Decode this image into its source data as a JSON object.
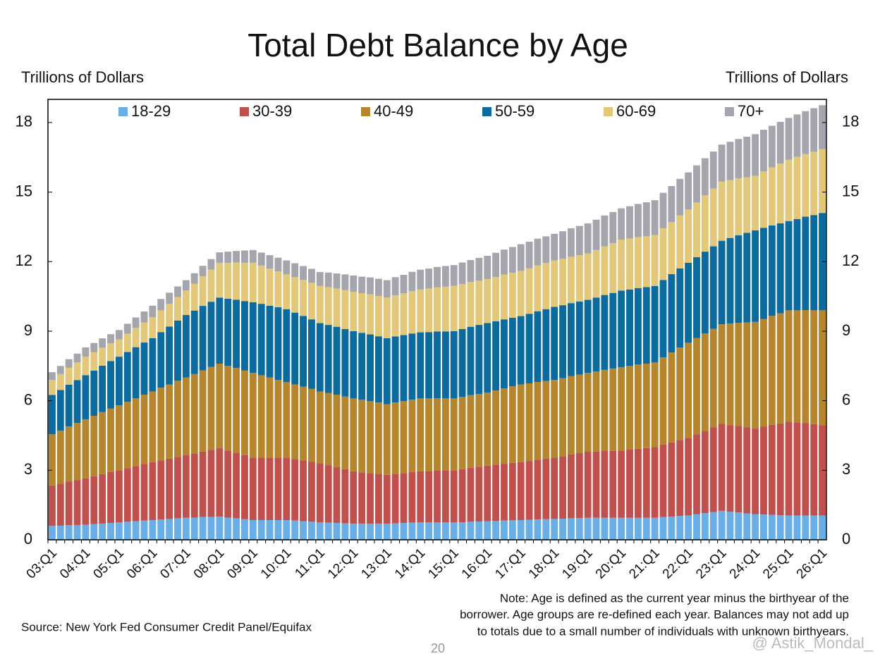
{
  "chart_data": {
    "type": "stacked_bar",
    "title": "Total Debt Balance by Age",
    "ylabel": "Trillions of Dollars",
    "y2label": "Trillions of Dollars",
    "note": [
      "Note: Age is defined as the current year minus the birthyear of the",
      "borrower. Age groups are re-defined each year. Balances may not add up",
      "to totals due to a small number of individuals with unknown birthyears."
    ],
    "source": "Source: New York Fed Consumer Credit Panel/Equifax",
    "page_number": "20",
    "watermark": "@ Astik_Mondal_",
    "ylim": [
      0,
      19
    ],
    "yticks": [
      0,
      3,
      6,
      9,
      12,
      15,
      18
    ],
    "y2lim": [
      0,
      19
    ],
    "y2ticks": [
      0,
      3,
      6,
      9,
      12,
      15,
      18
    ],
    "legend": "top",
    "categories": [
      "03:Q1",
      null,
      null,
      null,
      "04:Q1",
      null,
      null,
      null,
      "05:Q1",
      null,
      null,
      null,
      "06:Q1",
      null,
      null,
      null,
      "07:Q1",
      null,
      null,
      null,
      "08:Q1",
      null,
      null,
      null,
      "09:Q1",
      null,
      null,
      null,
      "10:Q1",
      null,
      null,
      null,
      "11:Q1",
      null,
      null,
      null,
      "12:Q1",
      null,
      null,
      null,
      "13:Q1",
      null,
      null,
      null,
      "14:Q1",
      null,
      null,
      null,
      "15:Q1",
      null,
      null,
      null,
      "16:Q1",
      null,
      null,
      null,
      "17:Q1",
      null,
      null,
      null,
      "18:Q1",
      null,
      null,
      null,
      "19:Q1",
      null,
      null,
      null,
      "20:Q1",
      null,
      null,
      null,
      "21:Q1",
      null,
      null,
      null,
      "22:Q1",
      null,
      null,
      null,
      "23:Q1",
      null,
      null,
      null,
      "24:Q1",
      null,
      null,
      null,
      "25:Q1",
      null,
      null,
      null,
      "26:Q1"
    ],
    "series": [
      {
        "name": "18-29",
        "color": "#6aaee8",
        "values": [
          0.6,
          0.61,
          0.63,
          0.64,
          0.65,
          0.68,
          0.7,
          0.73,
          0.75,
          0.78,
          0.8,
          0.83,
          0.85,
          0.88,
          0.9,
          0.93,
          0.95,
          0.96,
          0.98,
          0.99,
          1.0,
          0.96,
          0.93,
          0.89,
          0.85,
          0.85,
          0.85,
          0.85,
          0.85,
          0.83,
          0.8,
          0.78,
          0.75,
          0.74,
          0.73,
          0.71,
          0.7,
          0.7,
          0.7,
          0.7,
          0.7,
          0.71,
          0.73,
          0.74,
          0.75,
          0.75,
          0.75,
          0.75,
          0.75,
          0.76,
          0.78,
          0.79,
          0.8,
          0.81,
          0.83,
          0.84,
          0.85,
          0.86,
          0.88,
          0.89,
          0.9,
          0.91,
          0.93,
          0.94,
          0.95,
          0.95,
          0.95,
          0.95,
          0.95,
          0.95,
          0.95,
          0.95,
          0.95,
          0.98,
          1.0,
          1.03,
          1.05,
          1.1,
          1.15,
          1.2,
          1.25,
          1.21,
          1.18,
          1.14,
          1.1,
          1.09,
          1.08,
          1.06,
          1.05,
          1.05,
          1.05,
          1.05,
          1.05
        ]
      },
      {
        "name": "30-39",
        "color": "#c0504d",
        "values": [
          1.75,
          1.81,
          1.88,
          1.94,
          2.0,
          2.06,
          2.13,
          2.19,
          2.25,
          2.31,
          2.38,
          2.44,
          2.5,
          2.55,
          2.6,
          2.65,
          2.7,
          2.76,
          2.83,
          2.89,
          2.95,
          2.89,
          2.83,
          2.76,
          2.7,
          2.7,
          2.7,
          2.7,
          2.7,
          2.66,
          2.63,
          2.59,
          2.55,
          2.48,
          2.4,
          2.33,
          2.25,
          2.21,
          2.18,
          2.14,
          2.1,
          2.13,
          2.15,
          2.18,
          2.2,
          2.21,
          2.23,
          2.24,
          2.25,
          2.29,
          2.33,
          2.36,
          2.4,
          2.43,
          2.45,
          2.48,
          2.5,
          2.54,
          2.58,
          2.61,
          2.65,
          2.7,
          2.75,
          2.8,
          2.85,
          2.86,
          2.88,
          2.89,
          2.9,
          2.94,
          2.98,
          3.01,
          3.05,
          3.13,
          3.2,
          3.28,
          3.35,
          3.45,
          3.55,
          3.65,
          3.75,
          3.74,
          3.73,
          3.71,
          3.7,
          3.79,
          3.88,
          3.96,
          4.05,
          4.01,
          3.98,
          3.94,
          3.9
        ]
      },
      {
        "name": "40-49",
        "color": "#b5862e",
        "values": [
          2.2,
          2.29,
          2.38,
          2.46,
          2.55,
          2.61,
          2.68,
          2.74,
          2.8,
          2.86,
          2.93,
          2.99,
          3.05,
          3.13,
          3.2,
          3.28,
          3.35,
          3.43,
          3.5,
          3.58,
          3.65,
          3.65,
          3.65,
          3.65,
          3.65,
          3.55,
          3.45,
          3.35,
          3.25,
          3.21,
          3.18,
          3.14,
          3.1,
          3.11,
          3.13,
          3.14,
          3.15,
          3.13,
          3.1,
          3.08,
          3.05,
          3.08,
          3.1,
          3.13,
          3.15,
          3.14,
          3.13,
          3.11,
          3.1,
          3.11,
          3.13,
          3.14,
          3.15,
          3.2,
          3.25,
          3.3,
          3.35,
          3.35,
          3.35,
          3.35,
          3.35,
          3.36,
          3.38,
          3.39,
          3.4,
          3.45,
          3.5,
          3.55,
          3.6,
          3.61,
          3.63,
          3.64,
          3.65,
          3.76,
          3.88,
          3.99,
          4.1,
          4.15,
          4.2,
          4.25,
          4.3,
          4.38,
          4.45,
          4.53,
          4.6,
          4.65,
          4.7,
          4.75,
          4.8,
          4.84,
          4.88,
          4.91,
          4.95
        ]
      },
      {
        "name": "50-59",
        "color": "#0b6a9e",
        "values": [
          1.7,
          1.75,
          1.8,
          1.85,
          1.9,
          1.95,
          2.0,
          2.05,
          2.1,
          2.15,
          2.2,
          2.25,
          2.3,
          2.4,
          2.5,
          2.6,
          2.7,
          2.74,
          2.78,
          2.81,
          2.85,
          2.9,
          2.95,
          3.0,
          3.05,
          3.08,
          3.1,
          3.13,
          3.15,
          3.1,
          3.05,
          3.0,
          2.95,
          2.94,
          2.93,
          2.91,
          2.9,
          2.89,
          2.88,
          2.86,
          2.85,
          2.85,
          2.85,
          2.85,
          2.85,
          2.86,
          2.88,
          2.89,
          2.9,
          2.93,
          2.95,
          2.98,
          3.0,
          2.99,
          2.98,
          2.96,
          2.95,
          3.0,
          3.05,
          3.1,
          3.15,
          3.15,
          3.15,
          3.15,
          3.15,
          3.19,
          3.23,
          3.26,
          3.3,
          3.3,
          3.3,
          3.3,
          3.3,
          3.34,
          3.38,
          3.41,
          3.45,
          3.49,
          3.53,
          3.56,
          3.6,
          3.69,
          3.78,
          3.86,
          3.95,
          3.93,
          3.9,
          3.88,
          3.85,
          3.94,
          4.03,
          4.11,
          4.2
        ]
      },
      {
        "name": "60-69",
        "color": "#e2c878",
        "values": [
          0.65,
          0.69,
          0.73,
          0.76,
          0.8,
          0.79,
          0.78,
          0.76,
          0.75,
          0.79,
          0.83,
          0.86,
          0.9,
          0.94,
          0.98,
          1.01,
          1.05,
          1.16,
          1.28,
          1.39,
          1.5,
          1.55,
          1.6,
          1.65,
          1.7,
          1.65,
          1.6,
          1.55,
          1.5,
          1.53,
          1.55,
          1.58,
          1.6,
          1.63,
          1.65,
          1.68,
          1.7,
          1.71,
          1.73,
          1.74,
          1.75,
          1.78,
          1.8,
          1.83,
          1.85,
          1.88,
          1.9,
          1.93,
          1.95,
          1.94,
          1.93,
          1.91,
          1.9,
          1.91,
          1.93,
          1.94,
          1.95,
          1.96,
          1.98,
          1.99,
          2.0,
          2.0,
          2.0,
          2.0,
          2.0,
          2.05,
          2.1,
          2.15,
          2.2,
          2.2,
          2.2,
          2.2,
          2.2,
          2.23,
          2.25,
          2.28,
          2.3,
          2.36,
          2.43,
          2.49,
          2.55,
          2.5,
          2.45,
          2.4,
          2.35,
          2.43,
          2.5,
          2.58,
          2.65,
          2.68,
          2.7,
          2.73,
          2.75
        ]
      },
      {
        "name": "70+",
        "color": "#a5a5ad",
        "values": [
          0.33,
          0.35,
          0.37,
          0.38,
          0.4,
          0.4,
          0.4,
          0.4,
          0.4,
          0.43,
          0.45,
          0.48,
          0.5,
          0.49,
          0.48,
          0.46,
          0.45,
          0.45,
          0.45,
          0.45,
          0.45,
          0.48,
          0.5,
          0.53,
          0.55,
          0.56,
          0.58,
          0.59,
          0.6,
          0.6,
          0.6,
          0.6,
          0.6,
          0.63,
          0.65,
          0.68,
          0.7,
          0.71,
          0.73,
          0.74,
          0.75,
          0.78,
          0.8,
          0.83,
          0.85,
          0.86,
          0.88,
          0.89,
          0.9,
          0.93,
          0.95,
          0.98,
          1.0,
          1.04,
          1.08,
          1.11,
          1.15,
          1.15,
          1.15,
          1.15,
          1.15,
          1.19,
          1.23,
          1.26,
          1.3,
          1.31,
          1.33,
          1.34,
          1.35,
          1.39,
          1.43,
          1.46,
          1.5,
          1.53,
          1.55,
          1.58,
          1.6,
          1.6,
          1.6,
          1.6,
          1.6,
          1.65,
          1.7,
          1.75,
          1.8,
          1.8,
          1.8,
          1.8,
          1.8,
          1.83,
          1.85,
          1.88,
          1.9
        ]
      }
    ]
  }
}
